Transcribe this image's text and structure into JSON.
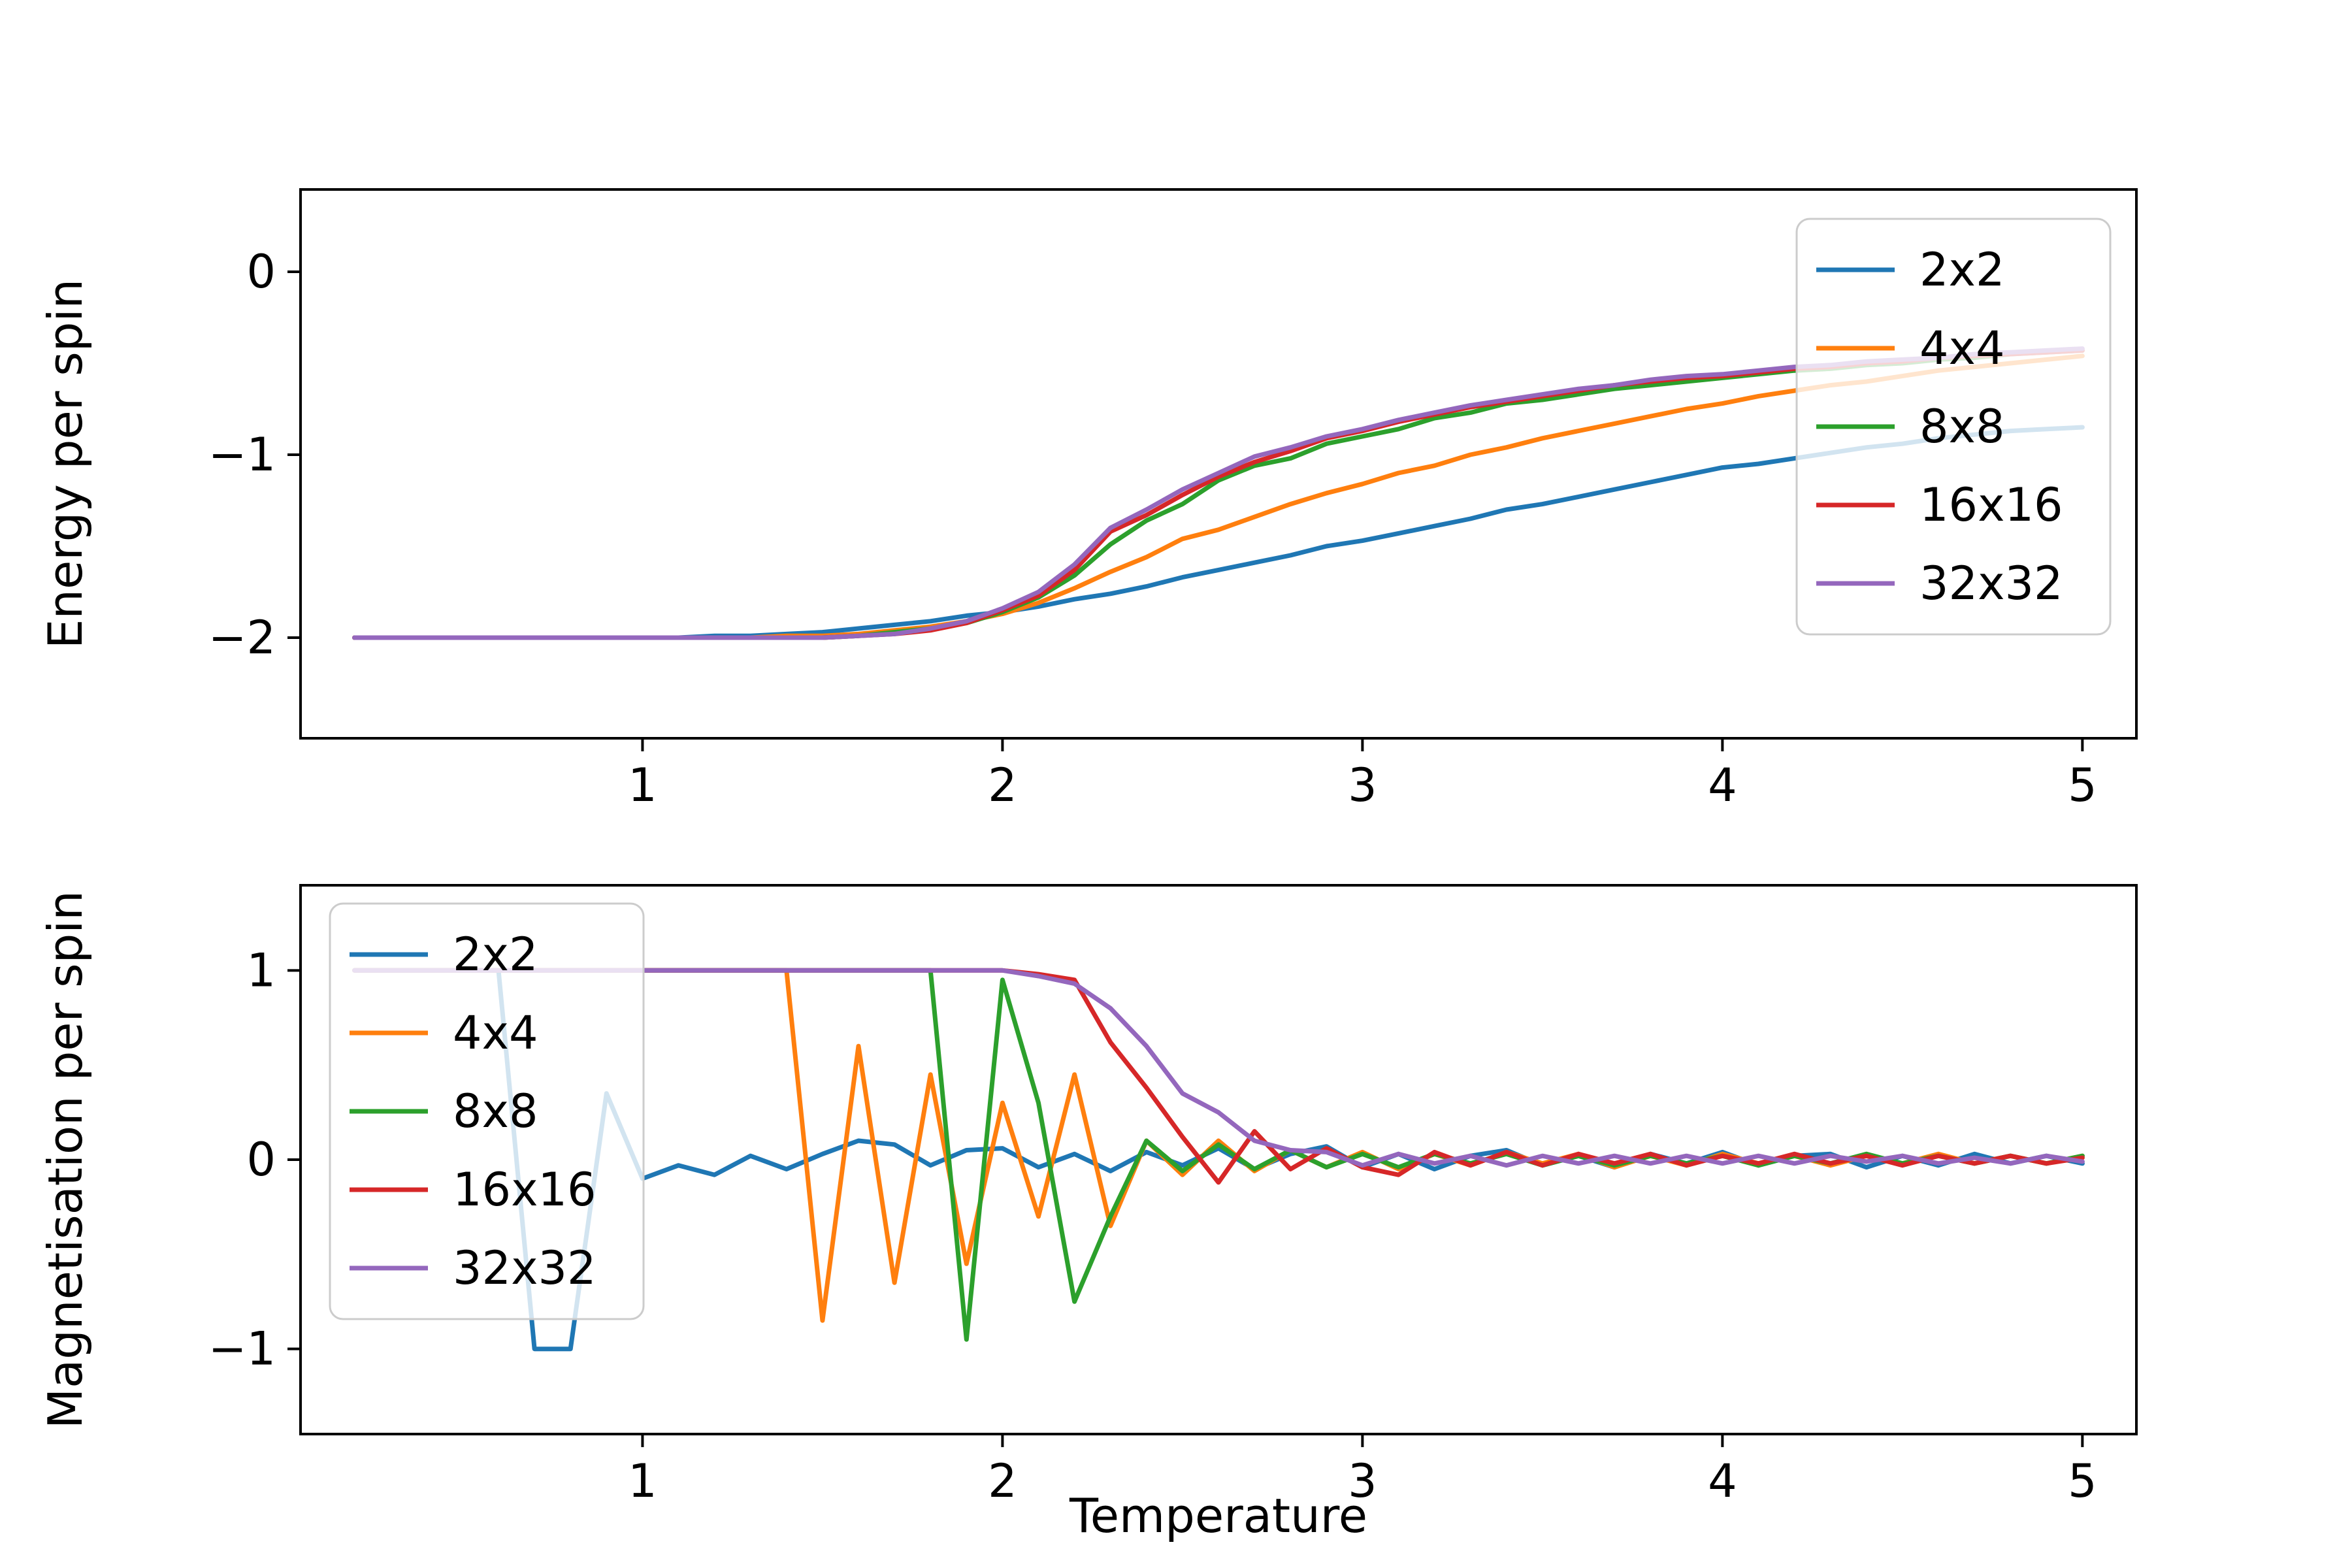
{
  "figure": {
    "background": "#ffffff"
  },
  "chart_data": [
    {
      "type": "line",
      "title": "",
      "xlabel": "",
      "ylabel": "Energy per spin",
      "xlim": [
        0.05,
        5.15
      ],
      "ylim": [
        -2.55,
        0.45
      ],
      "xticks": [
        1,
        2,
        3,
        4,
        5
      ],
      "yticks": [
        0,
        -1,
        -2
      ],
      "grid": false,
      "legend_position": "upper right",
      "x": [
        0.2,
        0.3,
        0.4,
        0.5,
        0.6,
        0.7,
        0.8,
        0.9,
        1.0,
        1.1,
        1.2,
        1.3,
        1.4,
        1.5,
        1.6,
        1.7,
        1.8,
        1.9,
        2.0,
        2.1,
        2.2,
        2.3,
        2.4,
        2.5,
        2.6,
        2.7,
        2.8,
        2.9,
        3.0,
        3.1,
        3.2,
        3.3,
        3.4,
        3.5,
        3.6,
        3.7,
        3.8,
        3.9,
        4.0,
        4.1,
        4.2,
        4.3,
        4.4,
        4.5,
        4.6,
        4.7,
        4.8,
        4.9,
        5.0
      ],
      "series": [
        {
          "name": "2x2",
          "color": "#1f77b4",
          "values": [
            -2.0,
            -2.0,
            -2.0,
            -2.0,
            -2.0,
            -2.0,
            -2.0,
            -2.0,
            -2.0,
            -2.0,
            -1.99,
            -1.99,
            -1.98,
            -1.97,
            -1.95,
            -1.93,
            -1.91,
            -1.88,
            -1.86,
            -1.83,
            -1.79,
            -1.76,
            -1.72,
            -1.67,
            -1.63,
            -1.59,
            -1.55,
            -1.5,
            -1.47,
            -1.43,
            -1.39,
            -1.35,
            -1.3,
            -1.27,
            -1.23,
            -1.19,
            -1.15,
            -1.11,
            -1.07,
            -1.05,
            -1.02,
            -0.99,
            -0.96,
            -0.94,
            -0.91,
            -0.89,
            -0.87,
            -0.86,
            -0.85
          ]
        },
        {
          "name": "4x4",
          "color": "#ff7f0e",
          "values": [
            -2.0,
            -2.0,
            -2.0,
            -2.0,
            -2.0,
            -2.0,
            -2.0,
            -2.0,
            -2.0,
            -2.0,
            -2.0,
            -2.0,
            -1.99,
            -1.99,
            -1.98,
            -1.96,
            -1.94,
            -1.91,
            -1.87,
            -1.81,
            -1.73,
            -1.64,
            -1.56,
            -1.46,
            -1.41,
            -1.34,
            -1.27,
            -1.21,
            -1.16,
            -1.1,
            -1.06,
            -1.0,
            -0.96,
            -0.91,
            -0.87,
            -0.83,
            -0.79,
            -0.75,
            -0.72,
            -0.68,
            -0.65,
            -0.62,
            -0.6,
            -0.57,
            -0.54,
            -0.52,
            -0.5,
            -0.48,
            -0.46
          ]
        },
        {
          "name": "8x8",
          "color": "#2ca02c",
          "values": [
            -2.0,
            -2.0,
            -2.0,
            -2.0,
            -2.0,
            -2.0,
            -2.0,
            -2.0,
            -2.0,
            -2.0,
            -2.0,
            -2.0,
            -2.0,
            -2.0,
            -1.99,
            -1.97,
            -1.95,
            -1.92,
            -1.86,
            -1.78,
            -1.66,
            -1.49,
            -1.36,
            -1.27,
            -1.14,
            -1.06,
            -1.02,
            -0.94,
            -0.9,
            -0.86,
            -0.8,
            -0.77,
            -0.72,
            -0.7,
            -0.67,
            -0.64,
            -0.62,
            -0.6,
            -0.58,
            -0.56,
            -0.54,
            -0.53,
            -0.51,
            -0.5,
            -0.48,
            -0.47,
            -0.45,
            -0.44,
            -0.43
          ]
        },
        {
          "name": "16x16",
          "color": "#d62728",
          "values": [
            -2.0,
            -2.0,
            -2.0,
            -2.0,
            -2.0,
            -2.0,
            -2.0,
            -2.0,
            -2.0,
            -2.0,
            -2.0,
            -2.0,
            -2.0,
            -2.0,
            -1.99,
            -1.98,
            -1.96,
            -1.92,
            -1.85,
            -1.77,
            -1.63,
            -1.42,
            -1.33,
            -1.22,
            -1.12,
            -1.04,
            -0.98,
            -0.91,
            -0.87,
            -0.82,
            -0.78,
            -0.74,
            -0.71,
            -0.68,
            -0.65,
            -0.62,
            -0.6,
            -0.58,
            -0.57,
            -0.55,
            -0.53,
            -0.52,
            -0.5,
            -0.49,
            -0.47,
            -0.46,
            -0.45,
            -0.44,
            -0.43
          ]
        },
        {
          "name": "32x32",
          "color": "#9467bd",
          "values": [
            -2.0,
            -2.0,
            -2.0,
            -2.0,
            -2.0,
            -2.0,
            -2.0,
            -2.0,
            -2.0,
            -2.0,
            -2.0,
            -2.0,
            -2.0,
            -2.0,
            -1.99,
            -1.98,
            -1.95,
            -1.91,
            -1.84,
            -1.75,
            -1.6,
            -1.4,
            -1.3,
            -1.19,
            -1.1,
            -1.01,
            -0.96,
            -0.9,
            -0.86,
            -0.81,
            -0.77,
            -0.73,
            -0.7,
            -0.67,
            -0.64,
            -0.62,
            -0.59,
            -0.57,
            -0.56,
            -0.54,
            -0.52,
            -0.51,
            -0.49,
            -0.48,
            -0.47,
            -0.45,
            -0.44,
            -0.43,
            -0.42
          ]
        }
      ]
    },
    {
      "type": "line",
      "title": "",
      "xlabel": "Temperature",
      "ylabel": "Magnetisation per spin",
      "xlim": [
        0.05,
        5.15
      ],
      "ylim": [
        -1.45,
        1.45
      ],
      "xticks": [
        1,
        2,
        3,
        4,
        5
      ],
      "yticks": [
        1,
        0,
        -1
      ],
      "grid": false,
      "legend_position": "upper left",
      "x": [
        0.2,
        0.3,
        0.4,
        0.5,
        0.6,
        0.7,
        0.8,
        0.9,
        1.0,
        1.1,
        1.2,
        1.3,
        1.4,
        1.5,
        1.6,
        1.7,
        1.8,
        1.9,
        2.0,
        2.1,
        2.2,
        2.3,
        2.4,
        2.5,
        2.6,
        2.7,
        2.8,
        2.9,
        3.0,
        3.1,
        3.2,
        3.3,
        3.4,
        3.5,
        3.6,
        3.7,
        3.8,
        3.9,
        4.0,
        4.1,
        4.2,
        4.3,
        4.4,
        4.5,
        4.6,
        4.7,
        4.8,
        4.9,
        5.0
      ],
      "series": [
        {
          "name": "2x2",
          "color": "#1f77b4",
          "values": [
            1.0,
            1.0,
            1.0,
            1.0,
            1.0,
            -1.0,
            -1.0,
            0.35,
            -0.1,
            -0.03,
            -0.08,
            0.02,
            -0.05,
            0.03,
            0.1,
            0.08,
            -0.03,
            0.05,
            0.06,
            -0.04,
            0.03,
            -0.06,
            0.04,
            -0.03,
            0.06,
            -0.05,
            0.03,
            0.07,
            -0.04,
            0.03,
            -0.05,
            0.02,
            0.05,
            -0.03,
            0.02,
            -0.04,
            0.03,
            -0.02,
            0.04,
            -0.03,
            0.02,
            0.03,
            -0.04,
            0.02,
            -0.03,
            0.03,
            -0.02,
            0.02,
            -0.02
          ]
        },
        {
          "name": "4x4",
          "color": "#ff7f0e",
          "values": [
            1.0,
            1.0,
            1.0,
            1.0,
            1.0,
            1.0,
            1.0,
            1.0,
            1.0,
            1.0,
            1.0,
            1.0,
            1.0,
            -0.85,
            0.6,
            -0.65,
            0.45,
            -0.55,
            0.3,
            -0.3,
            0.45,
            -0.35,
            0.1,
            -0.08,
            0.1,
            -0.06,
            0.05,
            -0.04,
            0.04,
            -0.05,
            0.03,
            -0.03,
            0.04,
            -0.02,
            0.03,
            -0.04,
            0.02,
            -0.03,
            0.03,
            -0.02,
            0.02,
            -0.03,
            0.02,
            -0.02,
            0.03,
            -0.02,
            0.02,
            -0.02,
            0.02
          ]
        },
        {
          "name": "8x8",
          "color": "#2ca02c",
          "values": [
            1.0,
            1.0,
            1.0,
            1.0,
            1.0,
            1.0,
            1.0,
            1.0,
            1.0,
            1.0,
            1.0,
            1.0,
            1.0,
            1.0,
            1.0,
            1.0,
            1.0,
            -0.95,
            0.95,
            0.3,
            -0.75,
            -0.3,
            0.1,
            -0.06,
            0.08,
            -0.05,
            0.05,
            -0.04,
            0.03,
            -0.04,
            0.03,
            -0.02,
            0.03,
            -0.03,
            0.02,
            -0.03,
            0.02,
            -0.02,
            0.02,
            -0.03,
            0.02,
            -0.02,
            0.03,
            -0.02,
            0.02,
            -0.02,
            0.02,
            -0.02,
            0.02
          ]
        },
        {
          "name": "16x16",
          "color": "#d62728",
          "values": [
            1.0,
            1.0,
            1.0,
            1.0,
            1.0,
            1.0,
            1.0,
            1.0,
            1.0,
            1.0,
            1.0,
            1.0,
            1.0,
            1.0,
            1.0,
            1.0,
            1.0,
            1.0,
            1.0,
            0.98,
            0.95,
            0.62,
            0.38,
            0.12,
            -0.12,
            0.15,
            -0.05,
            0.06,
            -0.04,
            -0.08,
            0.04,
            -0.03,
            0.04,
            -0.03,
            0.03,
            -0.02,
            0.03,
            -0.03,
            0.02,
            -0.02,
            0.03,
            -0.02,
            0.02,
            -0.03,
            0.02,
            -0.02,
            0.02,
            -0.02,
            0.01
          ]
        },
        {
          "name": "32x32",
          "color": "#9467bd",
          "values": [
            1.0,
            1.0,
            1.0,
            1.0,
            1.0,
            1.0,
            1.0,
            1.0,
            1.0,
            1.0,
            1.0,
            1.0,
            1.0,
            1.0,
            1.0,
            1.0,
            1.0,
            1.0,
            1.0,
            0.97,
            0.93,
            0.8,
            0.6,
            0.35,
            0.25,
            0.1,
            0.05,
            0.04,
            -0.03,
            0.03,
            -0.02,
            0.02,
            -0.03,
            0.02,
            -0.02,
            0.02,
            -0.02,
            0.02,
            -0.02,
            0.02,
            -0.02,
            0.02,
            -0.01,
            0.02,
            -0.02,
            0.01,
            -0.02,
            0.02,
            -0.01
          ]
        }
      ]
    }
  ]
}
